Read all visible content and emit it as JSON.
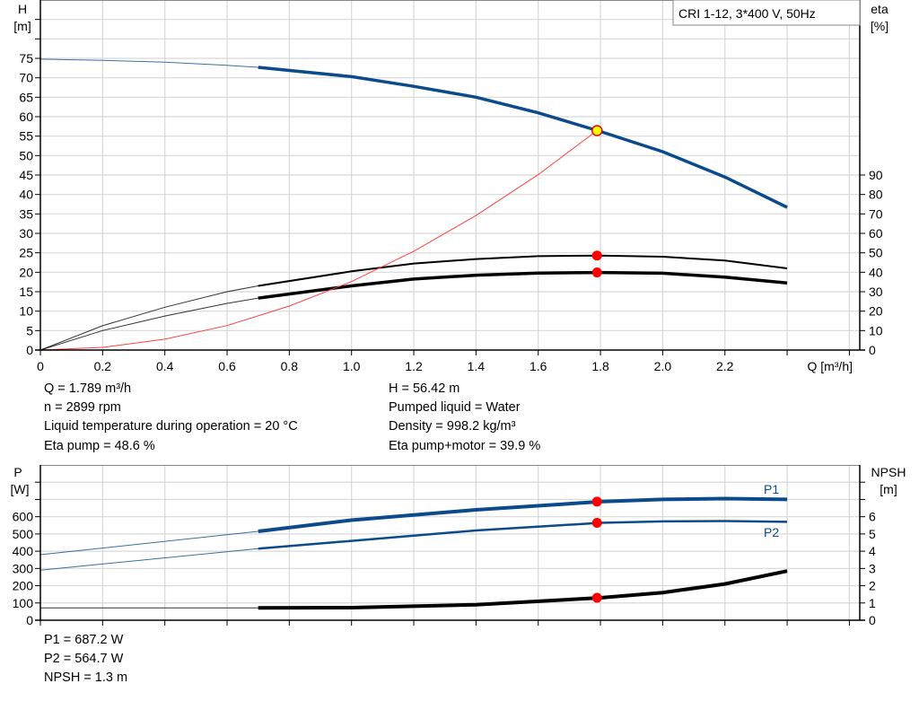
{
  "chart_data": [
    {
      "type": "line",
      "title": "CRI 1-12, 3*400 V, 50Hz",
      "xlabel": "Q [m³/h]",
      "ylabel_left": {
        "name": "H",
        "unit": "[m]"
      },
      "ylabel_right": {
        "name": "eta",
        "unit": "[%]"
      },
      "xlim": [
        0,
        2.65
      ],
      "ylim_left": [
        0,
        90
      ],
      "ylim_right": [
        0,
        180
      ],
      "x_ticks": [
        "0",
        "0.2",
        "0.4",
        "0.6",
        "0.8",
        "1.0",
        "1.2",
        "1.4",
        "1.6",
        "1.8",
        "2.0",
        "2.2"
      ],
      "y_ticks_left": [
        "0",
        "5",
        "10",
        "15",
        "20",
        "25",
        "30",
        "35",
        "40",
        "45",
        "50",
        "55",
        "60",
        "65",
        "70",
        "75"
      ],
      "y_ticks_right": [
        "0",
        "10",
        "20",
        "30",
        "40",
        "50",
        "60",
        "70",
        "80",
        "90"
      ],
      "grid": true,
      "legend": "top-right",
      "operating_q": 1.789,
      "series": [
        {
          "id": "head",
          "axis": "left",
          "color": "#0b4a8b",
          "thick_from": 0.7,
          "x": [
            0,
            0.2,
            0.4,
            0.6,
            0.7,
            1.0,
            1.2,
            1.4,
            1.6,
            1.8,
            2.0,
            2.2,
            2.4
          ],
          "y": [
            74.8,
            74.5,
            74.0,
            73.2,
            72.7,
            70.3,
            67.8,
            65.0,
            61.0,
            56.2,
            51.0,
            44.5,
            36.7
          ]
        },
        {
          "id": "eta-pump",
          "axis": "right",
          "color": "#000000",
          "thick_from": 0.7,
          "width": 2,
          "x": [
            0,
            0.2,
            0.4,
            0.6,
            0.7,
            1.0,
            1.2,
            1.4,
            1.6,
            1.8,
            2.0,
            2.2,
            2.4
          ],
          "y": [
            0,
            12.5,
            22,
            30,
            33,
            40.5,
            44.5,
            46.8,
            48.3,
            48.6,
            48,
            46,
            42
          ]
        },
        {
          "id": "eta-pump-motor",
          "axis": "right",
          "color": "#000000",
          "thick_from": 0.7,
          "width": 3.5,
          "x": [
            0,
            0.2,
            0.4,
            0.6,
            0.7,
            1.0,
            1.2,
            1.4,
            1.6,
            1.8,
            2.0,
            2.2,
            2.4
          ],
          "y": [
            0,
            10,
            17.5,
            24,
            26.7,
            33,
            36.5,
            38.5,
            39.6,
            39.9,
            39.5,
            37.5,
            34.5
          ]
        },
        {
          "id": "system-curve",
          "axis": "left",
          "color": "#ff4040",
          "x": [
            0,
            0.2,
            0.4,
            0.6,
            0.8,
            1.0,
            1.2,
            1.4,
            1.6,
            1.789
          ],
          "y": [
            0,
            0.7,
            2.8,
            6.3,
            11.3,
            17.6,
            25.4,
            34.6,
            45.1,
            56.42
          ]
        }
      ],
      "points": [
        {
          "axis": "left",
          "x": 1.789,
          "y": 56.42,
          "color": "#ffff00"
        },
        {
          "axis": "right",
          "x": 1.789,
          "y": 48.6,
          "color": "#ff0000"
        },
        {
          "axis": "right",
          "x": 1.789,
          "y": 39.9,
          "color": "#ff0000"
        }
      ]
    },
    {
      "type": "line",
      "ylabel_left": {
        "name": "P",
        "unit": "[W]"
      },
      "ylabel_right": {
        "name": "NPSH",
        "unit": "[m]"
      },
      "xlim": [
        0,
        2.65
      ],
      "ylim_left": [
        0,
        900
      ],
      "ylim_right": [
        0,
        9
      ],
      "y_ticks_left": [
        "0",
        "100",
        "200",
        "300",
        "400",
        "500",
        "600"
      ],
      "y_ticks_right": [
        "0",
        "1",
        "2",
        "3",
        "4",
        "5",
        "6"
      ],
      "grid": true,
      "series": [
        {
          "id": "p1",
          "name": "P1",
          "axis": "left",
          "color": "#0b4a8b",
          "thick_from": 0.7,
          "width": 4,
          "x": [
            0,
            0.7,
            1.0,
            1.4,
            1.8,
            2.0,
            2.2,
            2.4
          ],
          "y": [
            380,
            515,
            580,
            640,
            687.2,
            700,
            705,
            700
          ]
        },
        {
          "id": "p2",
          "name": "P2",
          "axis": "left",
          "color": "#0b4a8b",
          "thick_from": 0.7,
          "width": 2.5,
          "x": [
            0,
            0.7,
            1.0,
            1.4,
            1.8,
            2.0,
            2.2,
            2.4
          ],
          "y": [
            290,
            415,
            460,
            520,
            564.7,
            573,
            575,
            570
          ]
        },
        {
          "id": "npsh",
          "axis": "right",
          "color": "#000000",
          "thick_from": 0.7,
          "width": 4,
          "x": [
            0,
            0.7,
            1.0,
            1.4,
            1.8,
            2.0,
            2.2,
            2.4
          ],
          "y": [
            0.72,
            0.72,
            0.73,
            0.9,
            1.3,
            1.6,
            2.1,
            2.85
          ]
        }
      ],
      "points": [
        {
          "axis": "left",
          "x": 1.789,
          "y": 687.2,
          "color": "#ff0000"
        },
        {
          "axis": "left",
          "x": 1.789,
          "y": 564.7,
          "color": "#ff0000"
        },
        {
          "axis": "right",
          "x": 1.789,
          "y": 1.3,
          "color": "#ff0000"
        }
      ]
    }
  ],
  "info_top": {
    "q": "Q = 1.789 m³/h",
    "n": "n = 2899 rpm",
    "temp": "Liquid temperature during operation = 20 °C",
    "eta_pump": "Eta pump = 48.6 %",
    "h": "H = 56.42 m",
    "liquid": "Pumped liquid = Water",
    "density": "Density = 998.2 kg/m³",
    "eta_pm": "Eta pump+motor = 39.9 %"
  },
  "info_bottom": {
    "p1": "P1 = 687.2 W",
    "p2": "P2 = 564.7 W",
    "npsh": "NPSH = 1.3 m"
  }
}
